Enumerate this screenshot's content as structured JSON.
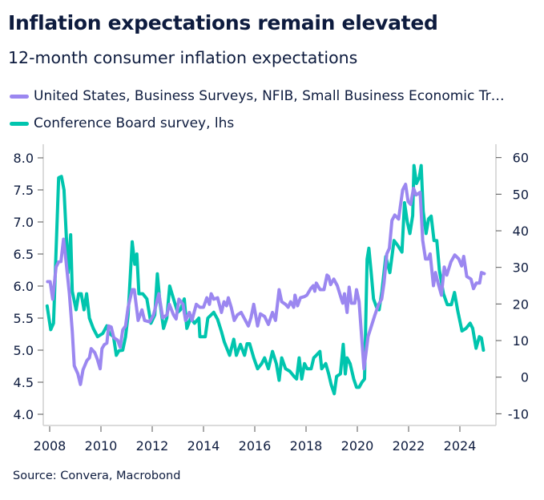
{
  "title": "Inflation expectations remain elevated",
  "subtitle": "12-month consumer inflation expectations",
  "source": "Source: Convera, Macrobond",
  "chart_data": {
    "type": "line",
    "title": "Inflation expectations remain elevated",
    "subtitle": "12-month consumer inflation expectations",
    "legend_position": "top-left",
    "grid": false,
    "x_ticks": [
      "2008",
      "2010",
      "2012",
      "2014",
      "2016",
      "2018",
      "2020",
      "2022",
      "2024"
    ],
    "xlim": [
      2007.8,
      2025.3
    ],
    "left_axis": {
      "ylim": [
        4.0,
        8.0
      ],
      "ticks": [
        "4.0",
        "4.5",
        "5.0",
        "5.5",
        "6.0",
        "6.5",
        "7.0",
        "7.5",
        "8.0"
      ]
    },
    "right_axis": {
      "ylim": [
        -10,
        60
      ],
      "ticks": [
        "-10",
        "0",
        "10",
        "20",
        "30",
        "40",
        "50",
        "60"
      ]
    },
    "series": [
      {
        "name": "United States, Business Surveys, NFIB, Small Business Economic Tr…",
        "axis": "right",
        "color": "#9b87f0",
        "x": [
          2007.92,
          2008.02,
          2008.12,
          2008.25,
          2008.35,
          2008.44,
          2008.54,
          2008.6,
          2008.77,
          2008.88,
          2008.96,
          2009.1,
          2009.2,
          2009.3,
          2009.45,
          2009.55,
          2009.62,
          2009.76,
          2009.86,
          2009.97,
          2010.04,
          2010.13,
          2010.23,
          2010.3,
          2010.4,
          2010.5,
          2010.65,
          2010.75,
          2010.85,
          2010.96,
          2011.06,
          2011.22,
          2011.3,
          2011.45,
          2011.6,
          2011.7,
          2011.9,
          2012.05,
          2012.26,
          2012.41,
          2012.57,
          2012.67,
          2012.83,
          2012.93,
          2013.04,
          2013.2,
          2013.3,
          2013.45,
          2013.55,
          2013.72,
          2013.86,
          2014.0,
          2014.13,
          2014.23,
          2014.3,
          2014.4,
          2014.55,
          2014.7,
          2014.8,
          2014.9,
          2014.97,
          2015.08,
          2015.2,
          2015.32,
          2015.47,
          2015.58,
          2015.75,
          2015.85,
          2015.96,
          2016.11,
          2016.22,
          2016.38,
          2016.53,
          2016.69,
          2016.81,
          2016.95,
          2017.05,
          2017.2,
          2017.3,
          2017.4,
          2017.52,
          2017.57,
          2017.67,
          2017.78,
          2017.93,
          2018.03,
          2018.18,
          2018.28,
          2018.34,
          2018.4,
          2018.55,
          2018.7,
          2018.82,
          2018.88,
          2018.96,
          2019.08,
          2019.22,
          2019.38,
          2019.43,
          2019.5,
          2019.6,
          2019.68,
          2019.77,
          2019.9,
          2019.97,
          2020.07,
          2020.26,
          2020.42,
          2020.52,
          2020.68,
          2020.83,
          2020.95,
          2021.04,
          2021.15,
          2021.25,
          2021.35,
          2021.46,
          2021.61,
          2021.77,
          2021.88,
          2021.98,
          2022.08,
          2022.19,
          2022.29,
          2022.45,
          2022.55,
          2022.66,
          2022.76,
          2022.84,
          2022.97,
          2023.05,
          2023.15,
          2023.28,
          2023.39,
          2023.49,
          2023.65,
          2023.8,
          2023.96,
          2024.07,
          2024.15,
          2024.27,
          2024.43,
          2024.53,
          2024.64,
          2024.77,
          2024.84,
          2024.95
        ],
        "y": [
          26.1,
          26.1,
          21.3,
          30.1,
          31.5,
          31.6,
          37.7,
          34.3,
          22.8,
          12.6,
          3.1,
          0.9,
          -2.0,
          2.0,
          4.5,
          5.3,
          7.8,
          6.7,
          4.9,
          2.3,
          7.8,
          8.9,
          9.3,
          14.0,
          13.7,
          10.8,
          10.1,
          8.2,
          12.9,
          14.0,
          19.1,
          23.9,
          23.9,
          15.5,
          18.4,
          15.5,
          15.1,
          17.0,
          22.8,
          16.2,
          17.0,
          19.9,
          17.0,
          15.9,
          21.3,
          19.9,
          15.5,
          17.7,
          15.5,
          19.9,
          19.1,
          19.1,
          21.7,
          19.9,
          22.8,
          21.3,
          21.7,
          17.7,
          20.6,
          19.5,
          21.7,
          19.1,
          15.5,
          17.0,
          17.7,
          16.2,
          14.0,
          16.2,
          19.9,
          14.0,
          17.3,
          16.6,
          14.4,
          17.7,
          15.5,
          23.9,
          20.6,
          19.9,
          19.1,
          20.6,
          19.1,
          22.4,
          19.5,
          21.7,
          22.0,
          22.4,
          24.2,
          25.0,
          23.5,
          25.7,
          23.9,
          23.9,
          27.9,
          27.5,
          25.3,
          26.8,
          25.0,
          21.3,
          20.2,
          22.8,
          17.7,
          24.6,
          20.2,
          20.2,
          23.9,
          20.6,
          2.3,
          11.1,
          13.3,
          16.9,
          19.9,
          21.3,
          25.7,
          33.7,
          35.2,
          42.8,
          44.3,
          43.2,
          51.2,
          52.7,
          48.0,
          47.2,
          51.6,
          49.8,
          50.5,
          37.4,
          32.3,
          32.3,
          33.7,
          25.0,
          28.6,
          25.7,
          22.4,
          30.1,
          27.9,
          31.5,
          33.4,
          32.3,
          30.4,
          33.0,
          27.5,
          26.8,
          24.2,
          25.7,
          25.7,
          28.6,
          28.3
        ]
      },
      {
        "name": "Conference Board survey, lhs",
        "axis": "left",
        "color": "#00c5ae",
        "x": [
          2007.9,
          2008.04,
          2008.15,
          2008.35,
          2008.46,
          2008.56,
          2008.72,
          2008.82,
          2008.88,
          2009.03,
          2009.13,
          2009.23,
          2009.34,
          2009.44,
          2009.55,
          2009.7,
          2009.87,
          2010.07,
          2010.23,
          2010.33,
          2010.49,
          2010.6,
          2010.7,
          2010.85,
          2010.96,
          2011.06,
          2011.22,
          2011.32,
          2011.4,
          2011.48,
          2011.63,
          2011.79,
          2011.95,
          2012.1,
          2012.2,
          2012.3,
          2012.44,
          2012.57,
          2012.68,
          2012.83,
          2012.99,
          2013.1,
          2013.25,
          2013.35,
          2013.5,
          2013.65,
          2013.82,
          2013.86,
          2014.07,
          2014.17,
          2014.4,
          2014.55,
          2014.7,
          2014.81,
          2015.02,
          2015.18,
          2015.28,
          2015.44,
          2015.6,
          2015.7,
          2015.8,
          2015.96,
          2016.11,
          2016.27,
          2016.38,
          2016.53,
          2016.69,
          2016.84,
          2016.95,
          2017.05,
          2017.2,
          2017.37,
          2017.53,
          2017.63,
          2017.73,
          2017.83,
          2017.94,
          2018.04,
          2018.2,
          2018.3,
          2018.4,
          2018.54,
          2018.61,
          2018.77,
          2018.88,
          2018.98,
          2019.1,
          2019.19,
          2019.34,
          2019.45,
          2019.53,
          2019.6,
          2019.72,
          2019.86,
          2019.97,
          2020.07,
          2020.18,
          2020.28,
          2020.38,
          2020.45,
          2020.54,
          2020.63,
          2020.75,
          2020.85,
          2020.96,
          2021.11,
          2021.27,
          2021.43,
          2021.58,
          2021.74,
          2021.84,
          2021.95,
          2022.05,
          2022.16,
          2022.21,
          2022.31,
          2022.42,
          2022.49,
          2022.57,
          2022.68,
          2022.78,
          2022.88,
          2022.99,
          2023.1,
          2023.2,
          2023.36,
          2023.51,
          2023.67,
          2023.79,
          2023.92,
          2024.08,
          2024.24,
          2024.4,
          2024.5,
          2024.63,
          2024.76,
          2024.84,
          2024.92
        ],
        "y": [
          5.69,
          5.32,
          5.42,
          7.69,
          7.71,
          7.5,
          6.21,
          6.8,
          5.92,
          5.63,
          5.88,
          5.88,
          5.63,
          5.88,
          5.5,
          5.34,
          5.21,
          5.26,
          5.38,
          5.26,
          5.21,
          4.92,
          4.99,
          5.0,
          5.21,
          5.55,
          6.69,
          6.34,
          6.5,
          5.88,
          5.88,
          5.8,
          5.42,
          5.55,
          6.19,
          5.75,
          5.34,
          5.5,
          6.0,
          5.8,
          5.59,
          5.63,
          5.8,
          5.34,
          5.5,
          5.42,
          5.5,
          5.21,
          5.21,
          5.5,
          5.59,
          5.48,
          5.29,
          5.13,
          4.92,
          5.17,
          4.92,
          5.09,
          4.92,
          5.1,
          5.1,
          4.88,
          4.71,
          4.79,
          4.88,
          4.71,
          4.98,
          4.79,
          4.53,
          4.88,
          4.71,
          4.67,
          4.59,
          4.55,
          4.88,
          4.55,
          4.79,
          4.71,
          4.71,
          4.88,
          4.92,
          4.98,
          4.71,
          4.79,
          4.63,
          4.46,
          4.32,
          4.59,
          4.63,
          5.09,
          4.63,
          4.88,
          4.79,
          4.55,
          4.42,
          4.42,
          4.5,
          4.55,
          6.42,
          6.59,
          6.21,
          5.8,
          5.67,
          5.63,
          5.92,
          6.46,
          6.21,
          6.71,
          6.63,
          6.53,
          7.3,
          7.0,
          6.82,
          7.1,
          7.88,
          7.6,
          7.7,
          7.88,
          7.17,
          6.82,
          7.05,
          7.09,
          6.71,
          6.71,
          6.25,
          5.88,
          5.71,
          5.71,
          5.9,
          5.61,
          5.3,
          5.34,
          5.42,
          5.34,
          5.03,
          5.21,
          5.19,
          5.0
        ]
      }
    ]
  }
}
